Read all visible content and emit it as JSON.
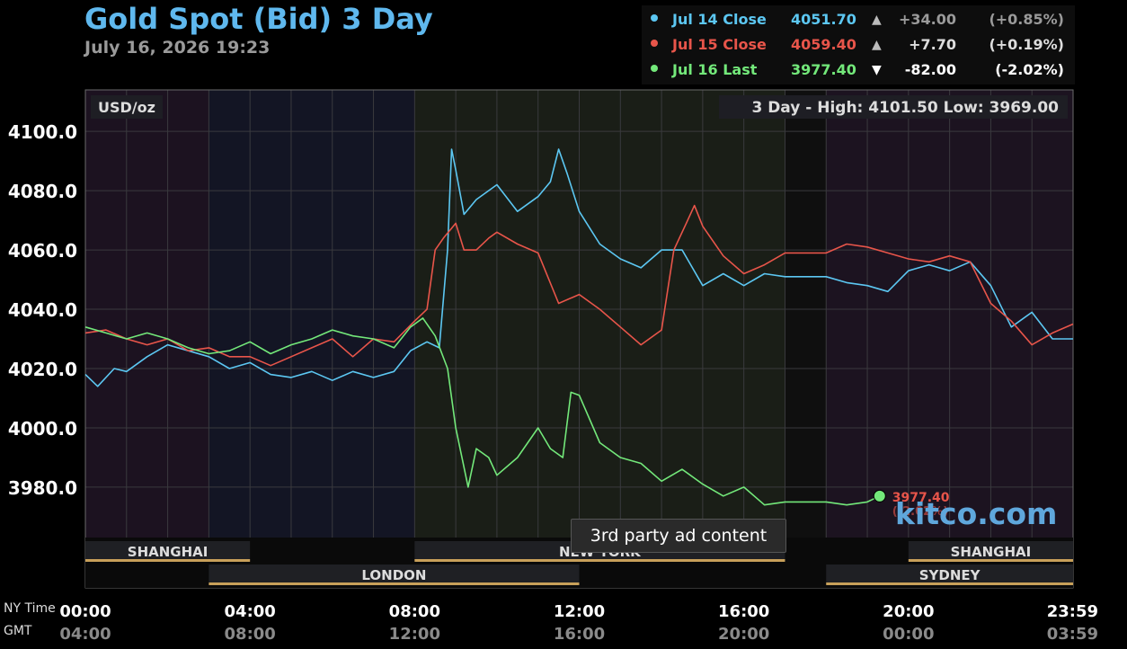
{
  "header": {
    "title": "Gold Spot (Bid) 3 Day",
    "datetime": "July 16, 2026 19:23"
  },
  "legend": [
    {
      "label": "Jul 14 Close",
      "price": "4051.70",
      "arrow": "▲",
      "change": "+34.00",
      "pct": "(+0.85%)",
      "color": "#5cc7f2",
      "text_color": "#5cc7f2",
      "change_color": "#9a9a9a"
    },
    {
      "label": "Jul 15 Close",
      "price": "4059.40",
      "arrow": "▲",
      "change": "+7.70",
      "pct": "(+0.19%)",
      "color": "#e8554a",
      "text_color": "#e8554a",
      "change_color": "#dddddd"
    },
    {
      "label": "Jul 16 Last",
      "price": "3977.40",
      "arrow": "▼",
      "change": "-82.00",
      "pct": "(-2.02%)",
      "color": "#73e87a",
      "text_color": "#73e87a",
      "change_color": "#ffffff"
    }
  ],
  "chart_info": {
    "unit": "USD/oz",
    "range_text": "3 Day - High: 4101.50  Low: 3969.00",
    "ad_text": "3rd party ad content",
    "watermark": "kitco.com",
    "ny_label": "NY Time",
    "gmt_label": "GMT",
    "overlap_price": "3977.40",
    "overlap_pct": "(-2.02%)"
  },
  "colors": {
    "jul14": "#5cc7f2",
    "jul15": "#e8554a",
    "jul16": "#73e87a",
    "session_bar": "#c8a05a"
  },
  "sessions": {
    "row1": [
      {
        "name": "SHANGHAI",
        "start": 0,
        "end": 4
      },
      {
        "name": "NEW YORK",
        "start": 8,
        "end": 17
      },
      {
        "name": "SHANGHAI",
        "start": 20,
        "end": 24
      }
    ],
    "row2": [
      {
        "name": "LONDON",
        "start": 3,
        "end": 12
      },
      {
        "name": "SYDNEY",
        "start": 18,
        "end": 24
      }
    ]
  },
  "chart_data": {
    "type": "line",
    "title": "Gold Spot (Bid) 3 Day",
    "ylabel": "USD/oz",
    "xlim": [
      0,
      24
    ],
    "ylim": [
      3963,
      4114
    ],
    "y_ticks": [
      "4100.0",
      "4080.0",
      "4060.0",
      "4040.0",
      "4020.0",
      "4000.0",
      "3980.0"
    ],
    "y_tick_values": [
      4100,
      4080,
      4060,
      4040,
      4020,
      4000,
      3980
    ],
    "x_ticks_ny": [
      "00:00",
      "04:00",
      "08:00",
      "12:00",
      "16:00",
      "20:00",
      "23:59"
    ],
    "x_ticks_gmt": [
      "04:00",
      "08:00",
      "12:00",
      "16:00",
      "20:00",
      "00:00",
      "03:59"
    ],
    "x_tick_hours": [
      0,
      4,
      8,
      12,
      16,
      20,
      24
    ],
    "grid": true,
    "series": [
      {
        "name": "Jul 14 Close",
        "key": "jul14",
        "x": [
          0,
          0.3,
          0.7,
          1.0,
          1.5,
          2.0,
          2.5,
          3.0,
          3.5,
          4.0,
          4.5,
          5.0,
          5.5,
          6.0,
          6.5,
          7.0,
          7.5,
          7.9,
          8.3,
          8.6,
          8.8,
          8.9,
          9.0,
          9.2,
          9.5,
          10.0,
          10.5,
          11.0,
          11.3,
          11.5,
          11.7,
          12.0,
          12.5,
          13.0,
          13.5,
          14.0,
          14.5,
          15.0,
          15.5,
          16.0,
          16.5,
          17.0,
          18.0,
          18.5,
          19.0,
          19.5,
          20.0,
          20.5,
          21.0,
          21.5,
          22.0,
          22.5,
          23.0,
          23.5,
          24.0
        ],
        "y": [
          4018,
          4014,
          4020,
          4019,
          4024,
          4028,
          4026,
          4024,
          4020,
          4022,
          4018,
          4017,
          4019,
          4016,
          4019,
          4017,
          4019,
          4026,
          4029,
          4027,
          4060,
          4094,
          4087,
          4072,
          4077,
          4082,
          4073,
          4078,
          4083,
          4094,
          4086,
          4073,
          4062,
          4057,
          4054,
          4060,
          4060,
          4048,
          4052,
          4048,
          4052,
          4051,
          4051,
          4049,
          4048,
          4046,
          4053,
          4055,
          4053,
          4056,
          4048,
          4034,
          4039,
          4030,
          4030
        ]
      },
      {
        "name": "Jul 15 Close",
        "key": "jul15",
        "x": [
          0,
          0.5,
          1.0,
          1.5,
          2.0,
          2.5,
          3.0,
          3.5,
          4.0,
          4.5,
          5.0,
          5.5,
          6.0,
          6.5,
          7.0,
          7.5,
          8.0,
          8.3,
          8.5,
          8.7,
          9.0,
          9.2,
          9.5,
          9.8,
          10.0,
          10.5,
          11.0,
          11.5,
          12.0,
          12.5,
          13.0,
          13.5,
          14.0,
          14.3,
          14.6,
          14.8,
          15.0,
          15.5,
          16.0,
          16.5,
          17.0,
          18.0,
          18.5,
          19.0,
          19.5,
          20.0,
          20.5,
          21.0,
          21.5,
          22.0,
          22.5,
          23.0,
          23.5,
          24.0
        ],
        "y": [
          4032,
          4033,
          4030,
          4028,
          4030,
          4026,
          4027,
          4024,
          4024,
          4021,
          4024,
          4027,
          4030,
          4024,
          4030,
          4029,
          4036,
          4040,
          4060,
          4064,
          4069,
          4060,
          4060,
          4064,
          4066,
          4062,
          4059,
          4042,
          4045,
          4040,
          4034,
          4028,
          4033,
          4060,
          4069,
          4075,
          4068,
          4058,
          4052,
          4055,
          4059,
          4059,
          4062,
          4061,
          4059,
          4057,
          4056,
          4058,
          4056,
          4042,
          4036,
          4028,
          4032,
          4035
        ]
      },
      {
        "name": "Jul 16 Last",
        "key": "jul16",
        "x": [
          0,
          0.5,
          1.0,
          1.5,
          2.0,
          2.5,
          3.0,
          3.5,
          4.0,
          4.5,
          5.0,
          5.5,
          6.0,
          6.5,
          7.0,
          7.5,
          7.9,
          8.2,
          8.5,
          8.8,
          9.0,
          9.3,
          9.5,
          9.8,
          10.0,
          10.5,
          11.0,
          11.3,
          11.6,
          11.8,
          12.0,
          12.5,
          13.0,
          13.5,
          14.0,
          14.5,
          15.0,
          15.5,
          16.0,
          16.5,
          17.0,
          18.0,
          18.5,
          19.0,
          19.3
        ],
        "y": [
          4034,
          4032,
          4030,
          4032,
          4030,
          4027,
          4025,
          4026,
          4029,
          4025,
          4028,
          4030,
          4033,
          4031,
          4030,
          4027,
          4034,
          4037,
          4031,
          4020,
          4000,
          3980,
          3993,
          3990,
          3984,
          3990,
          4000,
          3993,
          3990,
          4012,
          4011,
          3995,
          3990,
          3988,
          3982,
          3986,
          3981,
          3977,
          3980,
          3974,
          3975,
          3975,
          3974,
          3975,
          3977
        ]
      }
    ]
  }
}
